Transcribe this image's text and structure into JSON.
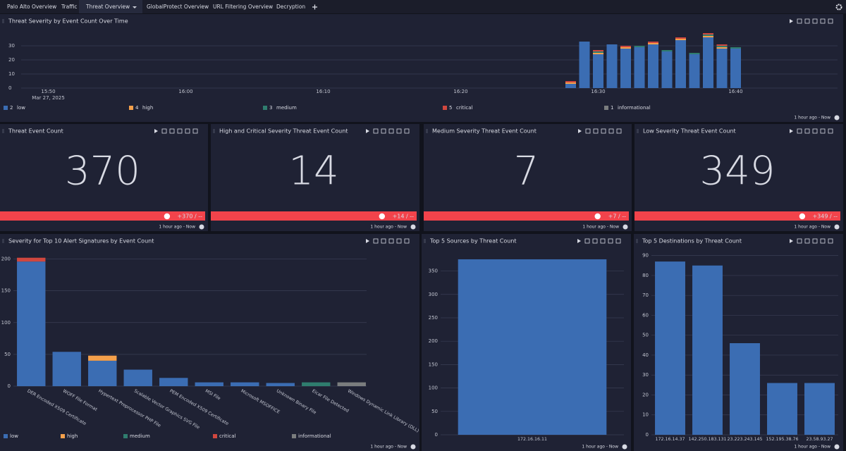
{
  "tabs": [
    "Palo Alto Overview",
    "Traffic",
    "Threat Overview",
    "GlobalProtect Overview",
    "URL Filtering Overview",
    "Decryption"
  ],
  "active_tab": 2,
  "stats": [
    {
      "title": "Threat Event Count",
      "value": 370,
      "trend": "+370 / --",
      "time_range": "1 hour ago - Now"
    },
    {
      "title": "High and Critical Severity Threat Event Count",
      "value": 14,
      "trend": "+14 / --",
      "time_range": "1 hour ago - Now"
    },
    {
      "title": "Medium Severity Threat Event Count",
      "value": 7,
      "trend": "+7 / --",
      "time_range": "1 hour ago - Now"
    },
    {
      "title": "Low Severity Threat Event Count",
      "value": 349,
      "trend": "+349 / --",
      "time_range": "1 hour ago - Now"
    }
  ],
  "chart_data": [
    {
      "type": "stacked-bar-time",
      "title": "Threat Severity by Event Count Over Time",
      "x": [
        "16:28",
        "16:29",
        "16:30",
        "16:31",
        "16:32",
        "16:33",
        "16:34",
        "16:35",
        "16:36",
        "16:37",
        "16:38",
        "16:39",
        "16:40"
      ],
      "series": [
        {
          "name": "low",
          "legend_key": "2",
          "color": "#3b6db3",
          "values": [
            3,
            33,
            24,
            31,
            28,
            29,
            31,
            26,
            34,
            24,
            36,
            28,
            28
          ]
        },
        {
          "name": "high",
          "legend_key": "4",
          "color": "#f4a04b",
          "values": [
            1,
            0,
            1,
            0,
            1,
            0,
            1,
            0,
            1,
            0,
            1,
            1,
            0
          ]
        },
        {
          "name": "medium",
          "legend_key": "3",
          "color": "#2f7d6e",
          "values": [
            0,
            0,
            1,
            0,
            0,
            1,
            0,
            1,
            0,
            1,
            1,
            1,
            1
          ]
        },
        {
          "name": "critical",
          "legend_key": "5",
          "color": "#d0473f",
          "values": [
            1,
            0,
            1,
            0,
            1,
            0,
            1,
            0,
            1,
            0,
            1,
            1,
            0
          ]
        },
        {
          "name": "informational",
          "legend_key": "1",
          "color": "#7a7d7e",
          "values": [
            0,
            0,
            0,
            0,
            0,
            0,
            0,
            0,
            0,
            0,
            0,
            0,
            0
          ]
        }
      ],
      "xlim": [
        "15:47",
        "16:47"
      ],
      "xticks": [
        "15:50",
        "16:00",
        "16:10",
        "16:20",
        "16:30",
        "16:40"
      ],
      "date_label": "Mar 27, 2025",
      "ylim": [
        0,
        40
      ],
      "yticks": [
        0,
        10,
        20,
        30
      ],
      "grid": true,
      "time_range": "1 hour ago - Now"
    },
    {
      "type": "stacked-bar",
      "title": "Severity for Top 10 Alert Signatures by Event Count",
      "categories": [
        "DER Encoded X509 Certificate",
        "WOFF File Format",
        "Hypertext Preprocessor PHP File",
        "Scalable Vector Graphics SVG File",
        "PEM Encoded X509 Certificate",
        "MSI File",
        "Microsoft MSOFFICE",
        "Unknown Binary File",
        "Eicar File Detected",
        "Windows Dynamic Link Library (DLL)"
      ],
      "series": [
        {
          "name": "low",
          "color": "#3b6db3",
          "values": [
            196,
            54,
            40,
            26,
            13,
            6,
            6,
            5,
            0,
            0
          ]
        },
        {
          "name": "high",
          "color": "#f4a04b",
          "values": [
            0,
            0,
            8,
            0,
            0,
            0,
            0,
            0,
            0,
            0
          ]
        },
        {
          "name": "medium",
          "color": "#2f7d6e",
          "values": [
            0,
            0,
            0,
            0,
            0,
            0,
            0,
            0,
            6,
            0
          ]
        },
        {
          "name": "critical",
          "color": "#d0473f",
          "values": [
            6,
            0,
            0,
            0,
            0,
            0,
            0,
            0,
            0,
            0
          ]
        },
        {
          "name": "informational",
          "color": "#7a7d7e",
          "values": [
            0,
            0,
            0,
            0,
            0,
            0,
            0,
            0,
            0,
            6
          ]
        }
      ],
      "ylim": [
        0,
        215
      ],
      "yticks": [
        0,
        50,
        100,
        150,
        200
      ],
      "grid": true,
      "time_range": "1 hour ago - Now"
    },
    {
      "type": "bar",
      "title": "Top 5 Sources by Threat Count",
      "categories": [
        "172.16.16.11"
      ],
      "values": [
        375
      ],
      "color": "#3b6db3",
      "ylim": [
        0,
        390
      ],
      "yticks": [
        0,
        50,
        100,
        150,
        200,
        250,
        300,
        350
      ],
      "grid": true,
      "time_range": "1 hour ago - Now"
    },
    {
      "type": "bar",
      "title": "Top 5 Destinations by Threat Count",
      "categories": [
        "172.16.14.37",
        "142.250.183.131",
        "23.223.243.145",
        "152.195.38.76",
        "23.58.93.27"
      ],
      "values": [
        87,
        85,
        46,
        26,
        26
      ],
      "color": "#3b6db3",
      "ylim": [
        0,
        92
      ],
      "yticks": [
        0,
        10,
        20,
        30,
        40,
        50,
        60,
        70,
        80,
        90
      ],
      "grid": true,
      "time_range": "1 hour ago - Now"
    }
  ]
}
